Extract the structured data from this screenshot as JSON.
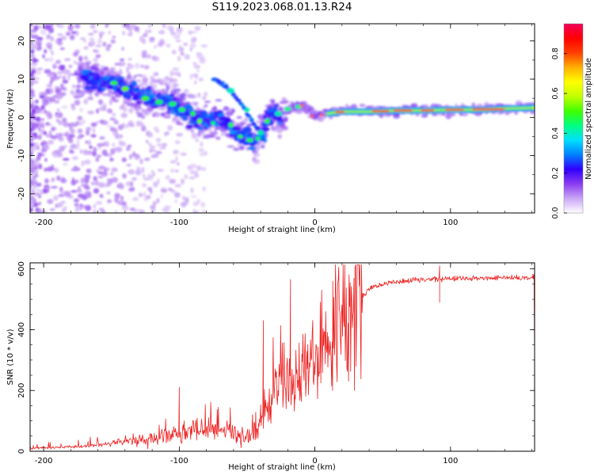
{
  "figure": {
    "title": "S119.2023.068.01.13.R24"
  },
  "chart_data": [
    {
      "type": "heatmap",
      "title": "S119.2023.068.01.13.R24",
      "xlabel": "Height of straight line (km)",
      "ylabel": "Frequency (Hz)",
      "xlim": [
        -210,
        162
      ],
      "ylim": [
        -25,
        24.5
      ],
      "xticks": [
        -200,
        -100,
        0,
        100
      ],
      "yticks": [
        -20,
        -10,
        0,
        10,
        20
      ],
      "colorbar": {
        "label": "Normalized spectral amplitude",
        "range": [
          0,
          0.95
        ],
        "ticks": [
          0.0,
          0.2,
          0.4,
          0.6,
          0.8
        ],
        "colors": [
          "#ffffff",
          "#c9a6f5",
          "#8a3cf0",
          "#3000ff",
          "#0080ff",
          "#00e0ff",
          "#00ff80",
          "#40ff00",
          "#c0ff00",
          "#ffff00",
          "#ffb000",
          "#ff4000",
          "#ff0000",
          "#f0005a"
        ]
      },
      "ridge": [
        {
          "x": -165,
          "y": 10
        },
        {
          "x": -150,
          "y": 9
        },
        {
          "x": -140,
          "y": 8
        },
        {
          "x": -130,
          "y": 6
        },
        {
          "x": -120,
          "y": 5
        },
        {
          "x": -110,
          "y": 4
        },
        {
          "x": -100,
          "y": 2
        },
        {
          "x": -90,
          "y": 0
        },
        {
          "x": -80,
          "y": -1
        },
        {
          "x": -70,
          "y": 0
        },
        {
          "x": -60,
          "y": -3
        },
        {
          "x": -50,
          "y": -5
        },
        {
          "x": -45,
          "y": -7
        },
        {
          "x": -40,
          "y": -5
        },
        {
          "x": -35,
          "y": 0
        },
        {
          "x": -30,
          "y": 1
        },
        {
          "x": -25,
          "y": -1
        },
        {
          "x": -20,
          "y": 2
        },
        {
          "x": -10,
          "y": 3
        },
        {
          "x": 0,
          "y": 0.5
        },
        {
          "x": 10,
          "y": 1
        },
        {
          "x": 20,
          "y": 1.5
        },
        {
          "x": 40,
          "y": 1.5
        },
        {
          "x": 60,
          "y": 1.8
        },
        {
          "x": 80,
          "y": 1.8
        },
        {
          "x": 100,
          "y": 2
        },
        {
          "x": 120,
          "y": 2
        },
        {
          "x": 140,
          "y": 2.3
        },
        {
          "x": 162,
          "y": 2.5
        }
      ],
      "branch": [
        {
          "x": -75,
          "y": 10
        },
        {
          "x": -65,
          "y": 8
        },
        {
          "x": -55,
          "y": 4
        },
        {
          "x": -48,
          "y": 0
        },
        {
          "x": -40,
          "y": -4
        },
        {
          "x": -37,
          "y": -6
        }
      ]
    },
    {
      "type": "line",
      "xlabel": "Height of straight line (km)",
      "ylabel": "SNR (10 * v/v)",
      "xlim": [
        -210,
        162
      ],
      "ylim": [
        0,
        620
      ],
      "xticks": [
        -200,
        -100,
        0,
        100
      ],
      "yticks": [
        0,
        200,
        400,
        600
      ],
      "series": [
        {
          "name": "SNR",
          "color": "#ee2222",
          "trend": [
            {
              "x": -210,
              "y": 10
            },
            {
              "x": -175,
              "y": 15
            },
            {
              "x": -150,
              "y": 25
            },
            {
              "x": -120,
              "y": 45
            },
            {
              "x": -100,
              "y": 60
            },
            {
              "x": -80,
              "y": 70
            },
            {
              "x": -60,
              "y": 60
            },
            {
              "x": -50,
              "y": 40
            },
            {
              "x": -42,
              "y": 60
            },
            {
              "x": -35,
              "y": 150
            },
            {
              "x": -28,
              "y": 220
            },
            {
              "x": -20,
              "y": 240
            },
            {
              "x": -10,
              "y": 260
            },
            {
              "x": 0,
              "y": 330
            },
            {
              "x": 10,
              "y": 370
            },
            {
              "x": 20,
              "y": 430
            },
            {
              "x": 30,
              "y": 490
            },
            {
              "x": 40,
              "y": 535
            },
            {
              "x": 55,
              "y": 555
            },
            {
              "x": 80,
              "y": 565
            },
            {
              "x": 100,
              "y": 568
            },
            {
              "x": 130,
              "y": 570
            },
            {
              "x": 162,
              "y": 572
            }
          ],
          "notable_spikes": [
            {
              "x": -100,
              "y": 210
            },
            {
              "x": -38,
              "y": 430
            },
            {
              "x": -18,
              "y": 565
            },
            {
              "x": 5,
              "y": 530
            },
            {
              "x": 13,
              "y": 200
            },
            {
              "x": 92,
              "y": 610
            },
            {
              "x": 92,
              "y": 490
            }
          ]
        }
      ]
    }
  ]
}
